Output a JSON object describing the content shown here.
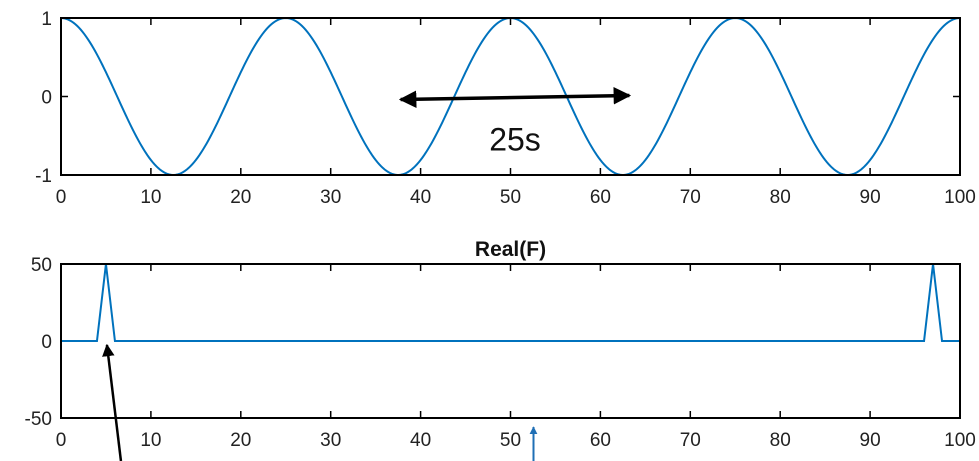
{
  "chart_data": [
    {
      "type": "line",
      "title": "",
      "xlabel": "",
      "ylabel": "",
      "xlim": [
        0,
        100
      ],
      "ylim": [
        -1,
        1
      ],
      "grid": false,
      "x_ticks": [
        0,
        10,
        20,
        30,
        40,
        50,
        60,
        70,
        80,
        90,
        100
      ],
      "y_ticks": [
        -1,
        0,
        1
      ],
      "series": [
        {
          "function": "cos(2*pi*x/25)",
          "period": 25,
          "x_range": [
            0,
            100
          ],
          "peaks_x": [
            0,
            25,
            50,
            75,
            100
          ],
          "troughs_x": [
            12.5,
            37.5,
            62.5,
            87.5
          ]
        }
      ],
      "annotations": [
        {
          "text": "25s",
          "arrow": "double-headed",
          "arrow_x_range": [
            38,
            63
          ],
          "y": 0
        }
      ],
      "color": "#0072BD"
    },
    {
      "type": "line",
      "title": "Real(F)",
      "xlabel": "",
      "ylabel": "",
      "xlim": [
        0,
        100
      ],
      "ylim": [
        -50,
        50
      ],
      "grid": false,
      "x_ticks": [
        0,
        10,
        20,
        30,
        40,
        50,
        60,
        70,
        80,
        90,
        100
      ],
      "y_ticks": [
        -50,
        0,
        50
      ],
      "series": [
        {
          "x": [
            0,
            4,
            5,
            6,
            100,
            96,
            97,
            98
          ],
          "points": [
            [
              0,
              0
            ],
            [
              4,
              0
            ],
            [
              5,
              50
            ],
            [
              6,
              0
            ],
            [
              96,
              0
            ],
            [
              97,
              50
            ],
            [
              98,
              0
            ],
            [
              100,
              0
            ]
          ]
        }
      ],
      "annotations": [
        {
          "type": "arrow",
          "points_to_x": 5,
          "points_to_y": 0,
          "color": "#000000"
        },
        {
          "type": "arrow",
          "points_to_x": 51,
          "points_to_y": -50,
          "color": "#1f6fb5"
        }
      ],
      "color": "#0072BD"
    }
  ]
}
